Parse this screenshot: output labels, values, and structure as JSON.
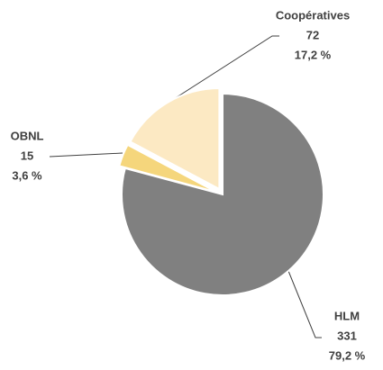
{
  "chart_data": {
    "type": "pie",
    "categories": [
      "HLM",
      "OBNL",
      "Coopératives"
    ],
    "values": [
      331,
      15,
      72
    ],
    "percent_labels": [
      "79,2 %",
      "3,6 %",
      "17,2 %"
    ],
    "colors": [
      "#808080",
      "#f5d67c",
      "#fce9c3"
    ]
  }
}
